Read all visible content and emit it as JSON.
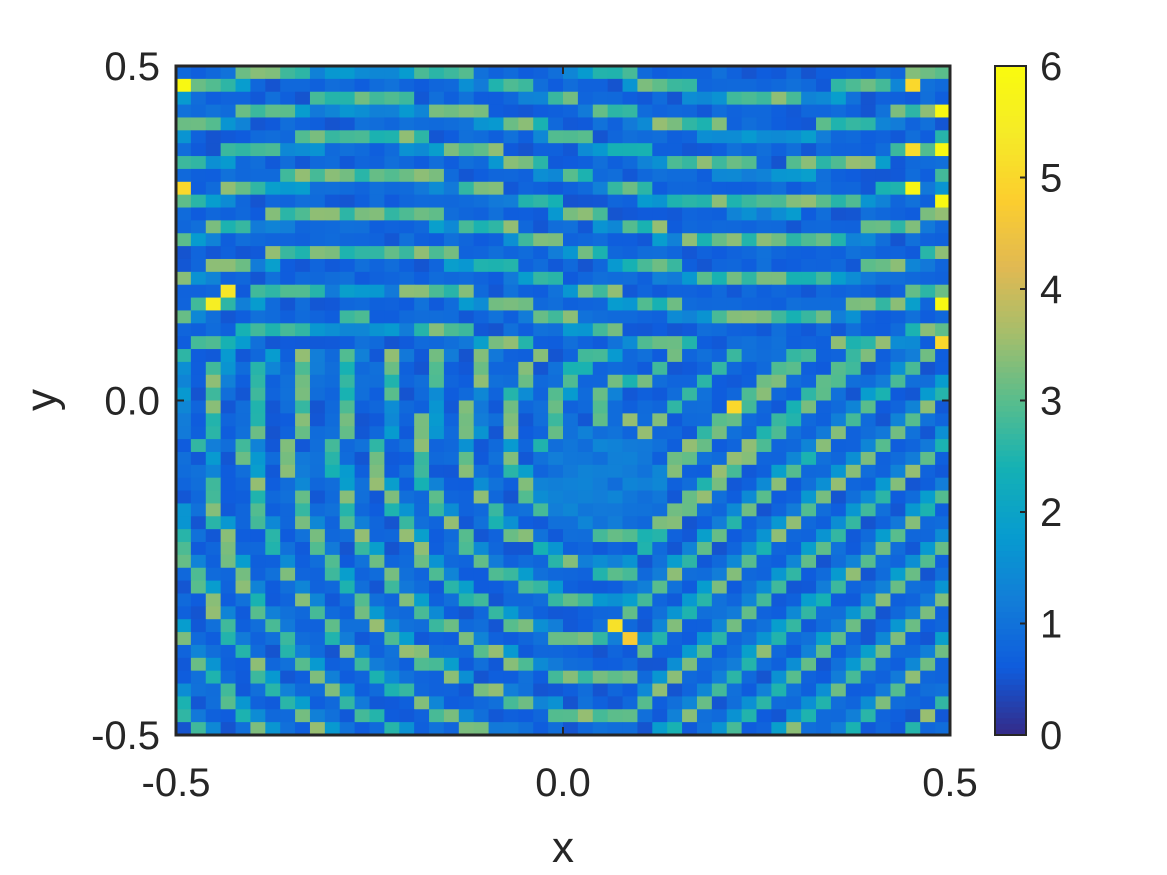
{
  "chart_data": {
    "type": "heatmap",
    "title": "",
    "xlabel": "x",
    "ylabel": "y",
    "xlim": [
      -0.5,
      0.5
    ],
    "ylim": [
      -0.5,
      0.5
    ],
    "clim": [
      0,
      6
    ],
    "colormap": "parula",
    "x_ticks": [
      "-0.5",
      "0.0",
      "0.5"
    ],
    "y_ticks": [
      "-0.5",
      "0.0",
      "0.5"
    ],
    "colorbar_ticks": [
      "0",
      "1",
      "2",
      "3",
      "4",
      "5",
      "6"
    ],
    "grid": false,
    "grid_size": [
      52,
      52
    ],
    "pattern": {
      "description": "high-valued ridges of ~2.5-3.5 on a background of ~0.3-1.0; spiral-like bands centred near (0.1, -0.05)",
      "center": [
        0.1,
        -0.05
      ],
      "ridge_value": 2.8,
      "background_value": 0.5,
      "edge_peaks": [
        {
          "x": -0.49,
          "y": 0.47,
          "value": 5.9
        },
        {
          "x": 0.46,
          "y": 0.47,
          "value": 5.0
        },
        {
          "x": 0.5,
          "y": 0.44,
          "value": 5.9
        },
        {
          "x": 0.46,
          "y": 0.38,
          "value": 5.1
        },
        {
          "x": 0.5,
          "y": 0.37,
          "value": 5.9
        },
        {
          "x": -0.49,
          "y": 0.32,
          "value": 5.0
        },
        {
          "x": 0.45,
          "y": 0.32,
          "value": 5.8
        },
        {
          "x": 0.5,
          "y": 0.29,
          "value": 5.9
        },
        {
          "x": -0.45,
          "y": 0.15,
          "value": 5.5
        },
        {
          "x": -0.43,
          "y": 0.17,
          "value": 5.3
        },
        {
          "x": 0.5,
          "y": 0.14,
          "value": 5.9
        },
        {
          "x": 0.5,
          "y": 0.08,
          "value": 5.0
        },
        {
          "x": 0.23,
          "y": -0.01,
          "value": 5.0
        },
        {
          "x": 0.06,
          "y": -0.34,
          "value": 5.2
        },
        {
          "x": 0.08,
          "y": -0.36,
          "value": 4.7
        }
      ]
    }
  },
  "colors": {
    "axes": "#262626",
    "background": "#ffffff"
  }
}
